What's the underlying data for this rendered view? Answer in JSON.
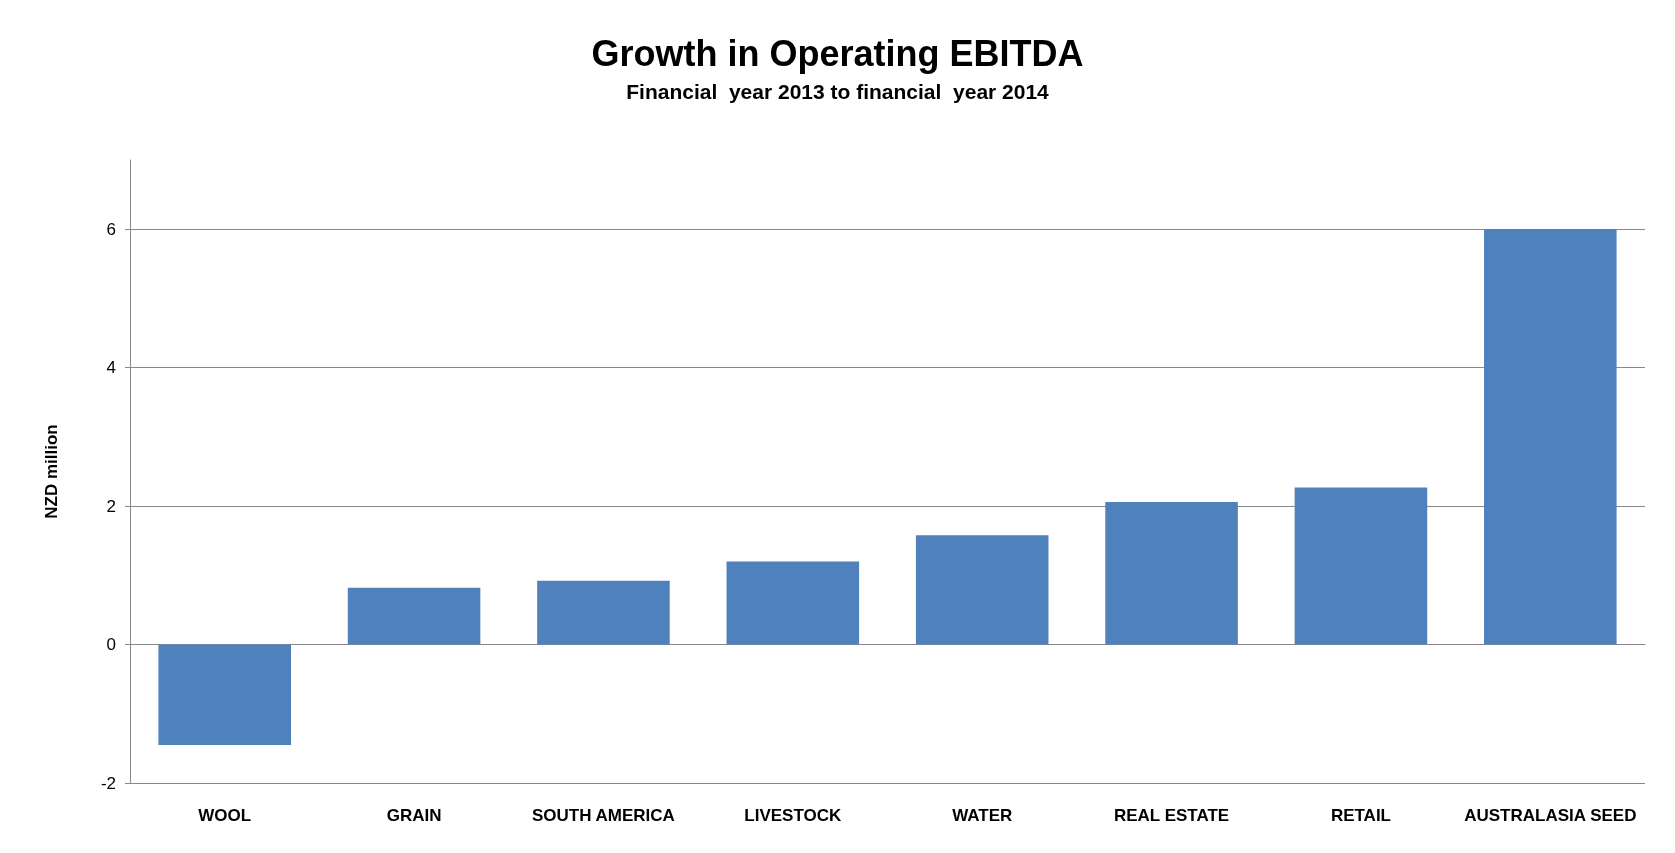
{
  "chart_data": {
    "type": "bar",
    "title": "Growth in Operating EBITDA",
    "subtitle": "Financial  year 2013 to financial  year 2014",
    "ylabel": "NZD million",
    "categories": [
      "WOOL",
      "GRAIN",
      "SOUTH AMERICA",
      "LIVESTOCK",
      "WATER",
      "REAL ESTATE",
      "RETAIL",
      "AUSTRALASIA SEED"
    ],
    "values": [
      -1.45,
      0.82,
      0.92,
      1.2,
      1.58,
      2.06,
      2.27,
      6.0
    ],
    "color": "#4f81bd",
    "ylim": [
      -2,
      7
    ],
    "yticks": [
      -2,
      0,
      2,
      4,
      6
    ],
    "grid": "y"
  }
}
